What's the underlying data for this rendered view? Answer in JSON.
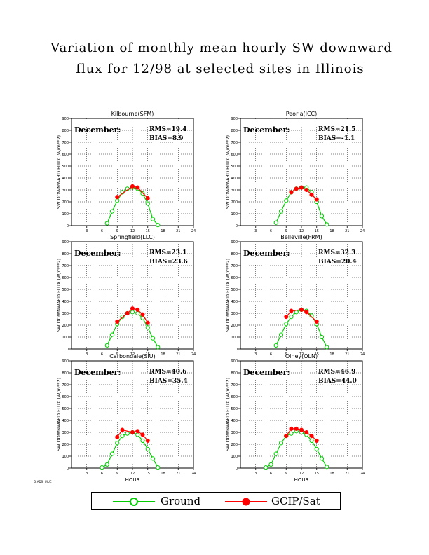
{
  "title": {
    "line1": "Variation of monthly mean hourly SW downward",
    "line2": "flux for 12/98 at selected sites in Illinois"
  },
  "credit": "GrADS: UIUC",
  "legend": {
    "ground_label": "Ground",
    "sat_label": "GCIP/Sat"
  },
  "colors": {
    "ground": "#00cc00",
    "sat": "#ff0000",
    "grid": "#000000"
  },
  "chart_data": [
    {
      "type": "line",
      "title": "Kilbourne(SFM)",
      "ylabel": "SW DOWNWARD FLUX (W/m**2)",
      "xlabel": "",
      "month_label": "December:",
      "rms": "RMS=19.4",
      "bias": "BIAS=8.9",
      "xlim": [
        0,
        24
      ],
      "ylim": [
        0,
        900
      ],
      "xticks": [
        "3",
        "6",
        "9",
        "12",
        "15",
        "18",
        "21",
        "24"
      ],
      "yticks": [
        "0",
        "100",
        "200",
        "300",
        "400",
        "500",
        "600",
        "700",
        "800",
        "900"
      ],
      "series": [
        {
          "name": "Ground",
          "points": [
            [
              7,
              20
            ],
            [
              8,
              120
            ],
            [
              9,
              210
            ],
            [
              10,
              280
            ],
            [
              11,
              310
            ],
            [
              12,
              320
            ],
            [
              13,
              310
            ],
            [
              14,
              270
            ],
            [
              15,
              185
            ],
            [
              16,
              55
            ],
            [
              17,
              5
            ]
          ]
        },
        {
          "name": "GCIP/Sat",
          "points": [
            [
              9,
              240
            ],
            [
              12,
              330
            ],
            [
              13,
              320
            ],
            [
              15,
              230
            ]
          ]
        }
      ]
    },
    {
      "type": "line",
      "title": "Peoria(ICC)",
      "ylabel": "SW DOWNWARD FLUX (W/m**2)",
      "xlabel": "",
      "month_label": "December:",
      "rms": "RMS=21.5",
      "bias": "BIAS=-1.1",
      "xlim": [
        0,
        24
      ],
      "ylim": [
        0,
        900
      ],
      "xticks": [
        "3",
        "6",
        "9",
        "12",
        "15",
        "18",
        "21",
        "24"
      ],
      "yticks": [
        "0",
        "100",
        "200",
        "300",
        "400",
        "500",
        "600",
        "700",
        "800",
        "900"
      ],
      "series": [
        {
          "name": "Ground",
          "points": [
            [
              7,
              25
            ],
            [
              8,
              120
            ],
            [
              9,
              210
            ],
            [
              10,
              280
            ],
            [
              11,
              310
            ],
            [
              12,
              320
            ],
            [
              13,
              320
            ],
            [
              14,
              280
            ],
            [
              15,
              200
            ],
            [
              16,
              80
            ],
            [
              17,
              10
            ]
          ]
        },
        {
          "name": "GCIP/Sat",
          "points": [
            [
              10,
              280
            ],
            [
              11,
              310
            ],
            [
              12,
              320
            ],
            [
              13,
              300
            ],
            [
              14,
              260
            ],
            [
              15,
              220
            ]
          ]
        }
      ]
    },
    {
      "type": "line",
      "title": "Springfield(LLC)",
      "ylabel": "SW DOWNWARD FLUX (W/m**2)",
      "xlabel": "",
      "month_label": "December:",
      "rms": "RMS=23.1",
      "bias": "BIAS=23.6",
      "xlim": [
        0,
        24
      ],
      "ylim": [
        0,
        900
      ],
      "xticks": [
        "3",
        "6",
        "9",
        "12",
        "15",
        "18",
        "21",
        "24"
      ],
      "yticks": [
        "0",
        "100",
        "200",
        "300",
        "400",
        "500",
        "600",
        "700",
        "800",
        "900"
      ],
      "series": [
        {
          "name": "Ground",
          "points": [
            [
              7,
              30
            ],
            [
              8,
              120
            ],
            [
              9,
              210
            ],
            [
              10,
              270
            ],
            [
              11,
              300
            ],
            [
              12,
              310
            ],
            [
              13,
              300
            ],
            [
              14,
              260
            ],
            [
              15,
              180
            ],
            [
              16,
              90
            ],
            [
              17,
              15
            ]
          ]
        },
        {
          "name": "GCIP/Sat",
          "points": [
            [
              9,
              230
            ],
            [
              11,
              300
            ],
            [
              12,
              340
            ],
            [
              13,
              330
            ],
            [
              14,
              290
            ],
            [
              15,
              220
            ]
          ]
        }
      ]
    },
    {
      "type": "line",
      "title": "Belleville(FRM)",
      "ylabel": "SW DOWNWARD FLUX (W/m**2)",
      "xlabel": "",
      "month_label": "December:",
      "rms": "RMS=32.3",
      "bias": "BIAS=20.4",
      "xlim": [
        0,
        24
      ],
      "ylim": [
        0,
        900
      ],
      "xticks": [
        "3",
        "6",
        "9",
        "12",
        "15",
        "18",
        "21",
        "24"
      ],
      "yticks": [
        "0",
        "100",
        "200",
        "300",
        "400",
        "500",
        "600",
        "700",
        "800",
        "900"
      ],
      "series": [
        {
          "name": "Ground",
          "points": [
            [
              7,
              30
            ],
            [
              8,
              120
            ],
            [
              9,
              210
            ],
            [
              10,
              270
            ],
            [
              11,
              310
            ],
            [
              12,
              330
            ],
            [
              13,
              320
            ],
            [
              14,
              280
            ],
            [
              15,
              210
            ],
            [
              16,
              100
            ],
            [
              17,
              15
            ]
          ]
        },
        {
          "name": "GCIP/Sat",
          "points": [
            [
              9,
              270
            ],
            [
              10,
              320
            ],
            [
              12,
              330
            ],
            [
              13,
              310
            ],
            [
              15,
              230
            ]
          ]
        }
      ]
    },
    {
      "type": "line",
      "title": "Carbondale(SIU)",
      "ylabel": "SW DOWNWARD FLUX (W/m**2)",
      "xlabel": "HOUR",
      "month_label": "December:",
      "rms": "RMS=40.6",
      "bias": "BIAS=35.4",
      "xlim": [
        0,
        24
      ],
      "ylim": [
        0,
        900
      ],
      "xticks": [
        "3",
        "6",
        "9",
        "12",
        "15",
        "18",
        "21",
        "24"
      ],
      "yticks": [
        "0",
        "100",
        "200",
        "300",
        "400",
        "500",
        "600",
        "700",
        "800",
        "900"
      ],
      "series": [
        {
          "name": "Ground",
          "points": [
            [
              6,
              5
            ],
            [
              7,
              30
            ],
            [
              8,
              120
            ],
            [
              9,
              210
            ],
            [
              10,
              270
            ],
            [
              11,
              290
            ],
            [
              12,
              300
            ],
            [
              13,
              280
            ],
            [
              14,
              230
            ],
            [
              15,
              160
            ],
            [
              16,
              80
            ],
            [
              17,
              5
            ]
          ]
        },
        {
          "name": "GCIP/Sat",
          "points": [
            [
              9,
              260
            ],
            [
              10,
              320
            ],
            [
              12,
              300
            ],
            [
              13,
              310
            ],
            [
              14,
              280
            ],
            [
              15,
              230
            ]
          ]
        }
      ]
    },
    {
      "type": "line",
      "title": "Olney(OLN)",
      "ylabel": "SW DOWNWARD FLUX (W/m**2)",
      "xlabel": "HOUR",
      "month_label": "December:",
      "rms": "RMS=46.9",
      "bias": "BIAS=44.0",
      "xlim": [
        0,
        24
      ],
      "ylim": [
        0,
        900
      ],
      "xticks": [
        "3",
        "6",
        "9",
        "12",
        "15",
        "18",
        "21",
        "24"
      ],
      "yticks": [
        "0",
        "100",
        "200",
        "300",
        "400",
        "500",
        "600",
        "700",
        "800",
        "900"
      ],
      "series": [
        {
          "name": "Ground",
          "points": [
            [
              5,
              5
            ],
            [
              6,
              30
            ],
            [
              7,
              120
            ],
            [
              8,
              210
            ],
            [
              9,
              270
            ],
            [
              10,
              290
            ],
            [
              11,
              310
            ],
            [
              12,
              300
            ],
            [
              13,
              280
            ],
            [
              14,
              230
            ],
            [
              15,
              160
            ],
            [
              16,
              80
            ],
            [
              17,
              10
            ]
          ]
        },
        {
          "name": "GCIP/Sat",
          "points": [
            [
              9,
              270
            ],
            [
              10,
              330
            ],
            [
              11,
              330
            ],
            [
              12,
              320
            ],
            [
              13,
              300
            ],
            [
              14,
              270
            ],
            [
              15,
              230
            ]
          ]
        }
      ]
    }
  ]
}
